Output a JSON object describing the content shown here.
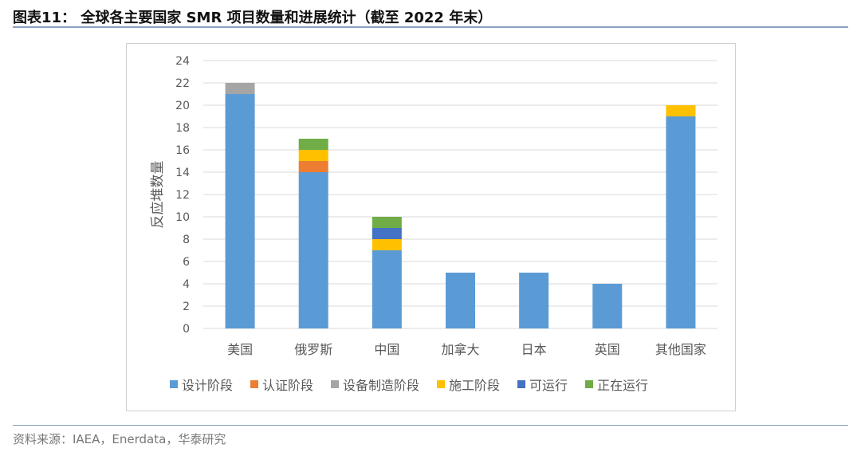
{
  "title": "图表11：  全球各主要国家 SMR 项目数量和进展统计（截至 2022 年末）",
  "source": "资料来源：IAEA，Enerdata，华泰研究",
  "chart_data": {
    "type": "bar",
    "stacked": true,
    "ylabel": "反应堆数量",
    "ylim": [
      0,
      24
    ],
    "yticks": [
      0,
      2,
      4,
      6,
      8,
      10,
      12,
      14,
      16,
      18,
      20,
      22,
      24
    ],
    "grid": true,
    "legend_position": "bottom",
    "categories": [
      "美国",
      "俄罗斯",
      "中国",
      "加拿大",
      "日本",
      "英国",
      "其他国家"
    ],
    "series": [
      {
        "name": "设计阶段",
        "color": "#5b9bd5",
        "values": [
          21,
          14,
          7,
          5,
          5,
          4,
          19
        ]
      },
      {
        "name": "认证阶段",
        "color": "#ed7d31",
        "values": [
          0,
          1,
          0,
          0,
          0,
          0,
          0
        ]
      },
      {
        "name": "设备制造阶段",
        "color": "#a5a5a5",
        "values": [
          1,
          0,
          0,
          0,
          0,
          0,
          0
        ]
      },
      {
        "name": "施工阶段",
        "color": "#ffc000",
        "values": [
          0,
          1,
          1,
          0,
          0,
          0,
          1
        ]
      },
      {
        "name": "可运行",
        "color": "#4472c4",
        "values": [
          0,
          0,
          1,
          0,
          0,
          0,
          0
        ]
      },
      {
        "name": "正在运行",
        "color": "#70ad47",
        "values": [
          0,
          1,
          1,
          0,
          0,
          0,
          0
        ]
      }
    ]
  }
}
